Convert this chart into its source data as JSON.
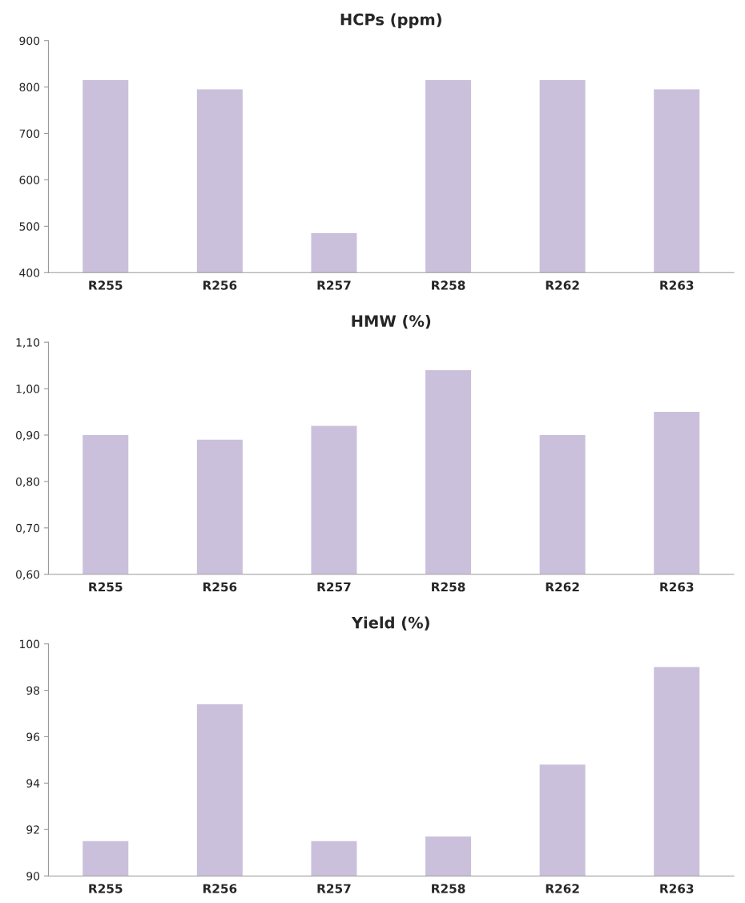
{
  "chart_data": [
    {
      "type": "bar",
      "title": "HCPs (ppm)",
      "categories": [
        "R255",
        "R256",
        "R257",
        "R258",
        "R262",
        "R263"
      ],
      "values": [
        815,
        795,
        485,
        815,
        815,
        795
      ],
      "color": "#cbc0db",
      "ylim": [
        400,
        900
      ],
      "yticks": [
        400,
        500,
        600,
        700,
        800,
        900
      ],
      "grid": false
    },
    {
      "type": "bar",
      "title": "HMW (%)",
      "categories": [
        "R255",
        "R256",
        "R257",
        "R258",
        "R262",
        "R263"
      ],
      "values": [
        0.9,
        0.89,
        0.92,
        1.04,
        0.9,
        0.95
      ],
      "color": "#cbc0db",
      "ylim": [
        0.6,
        1.1
      ],
      "yticks": [
        {
          "value": 0.6,
          "label": "0,60"
        },
        {
          "value": 0.7,
          "label": "0,70"
        },
        {
          "value": 0.8,
          "label": "0,80"
        },
        {
          "value": 0.9,
          "label": "0,90"
        },
        {
          "value": 1.0,
          "label": "1,00"
        },
        {
          "value": 1.1,
          "label": "1,10"
        }
      ],
      "grid": false
    },
    {
      "type": "bar",
      "title": "Yield (%)",
      "categories": [
        "R255",
        "R256",
        "R257",
        "R258",
        "R262",
        "R263"
      ],
      "values": [
        91.5,
        97.4,
        91.5,
        91.7,
        94.8,
        99.0
      ],
      "color": "#cbc0db",
      "ylim": [
        90,
        100
      ],
      "yticks": [
        90,
        92,
        94,
        96,
        98,
        100
      ],
      "grid": false
    }
  ]
}
